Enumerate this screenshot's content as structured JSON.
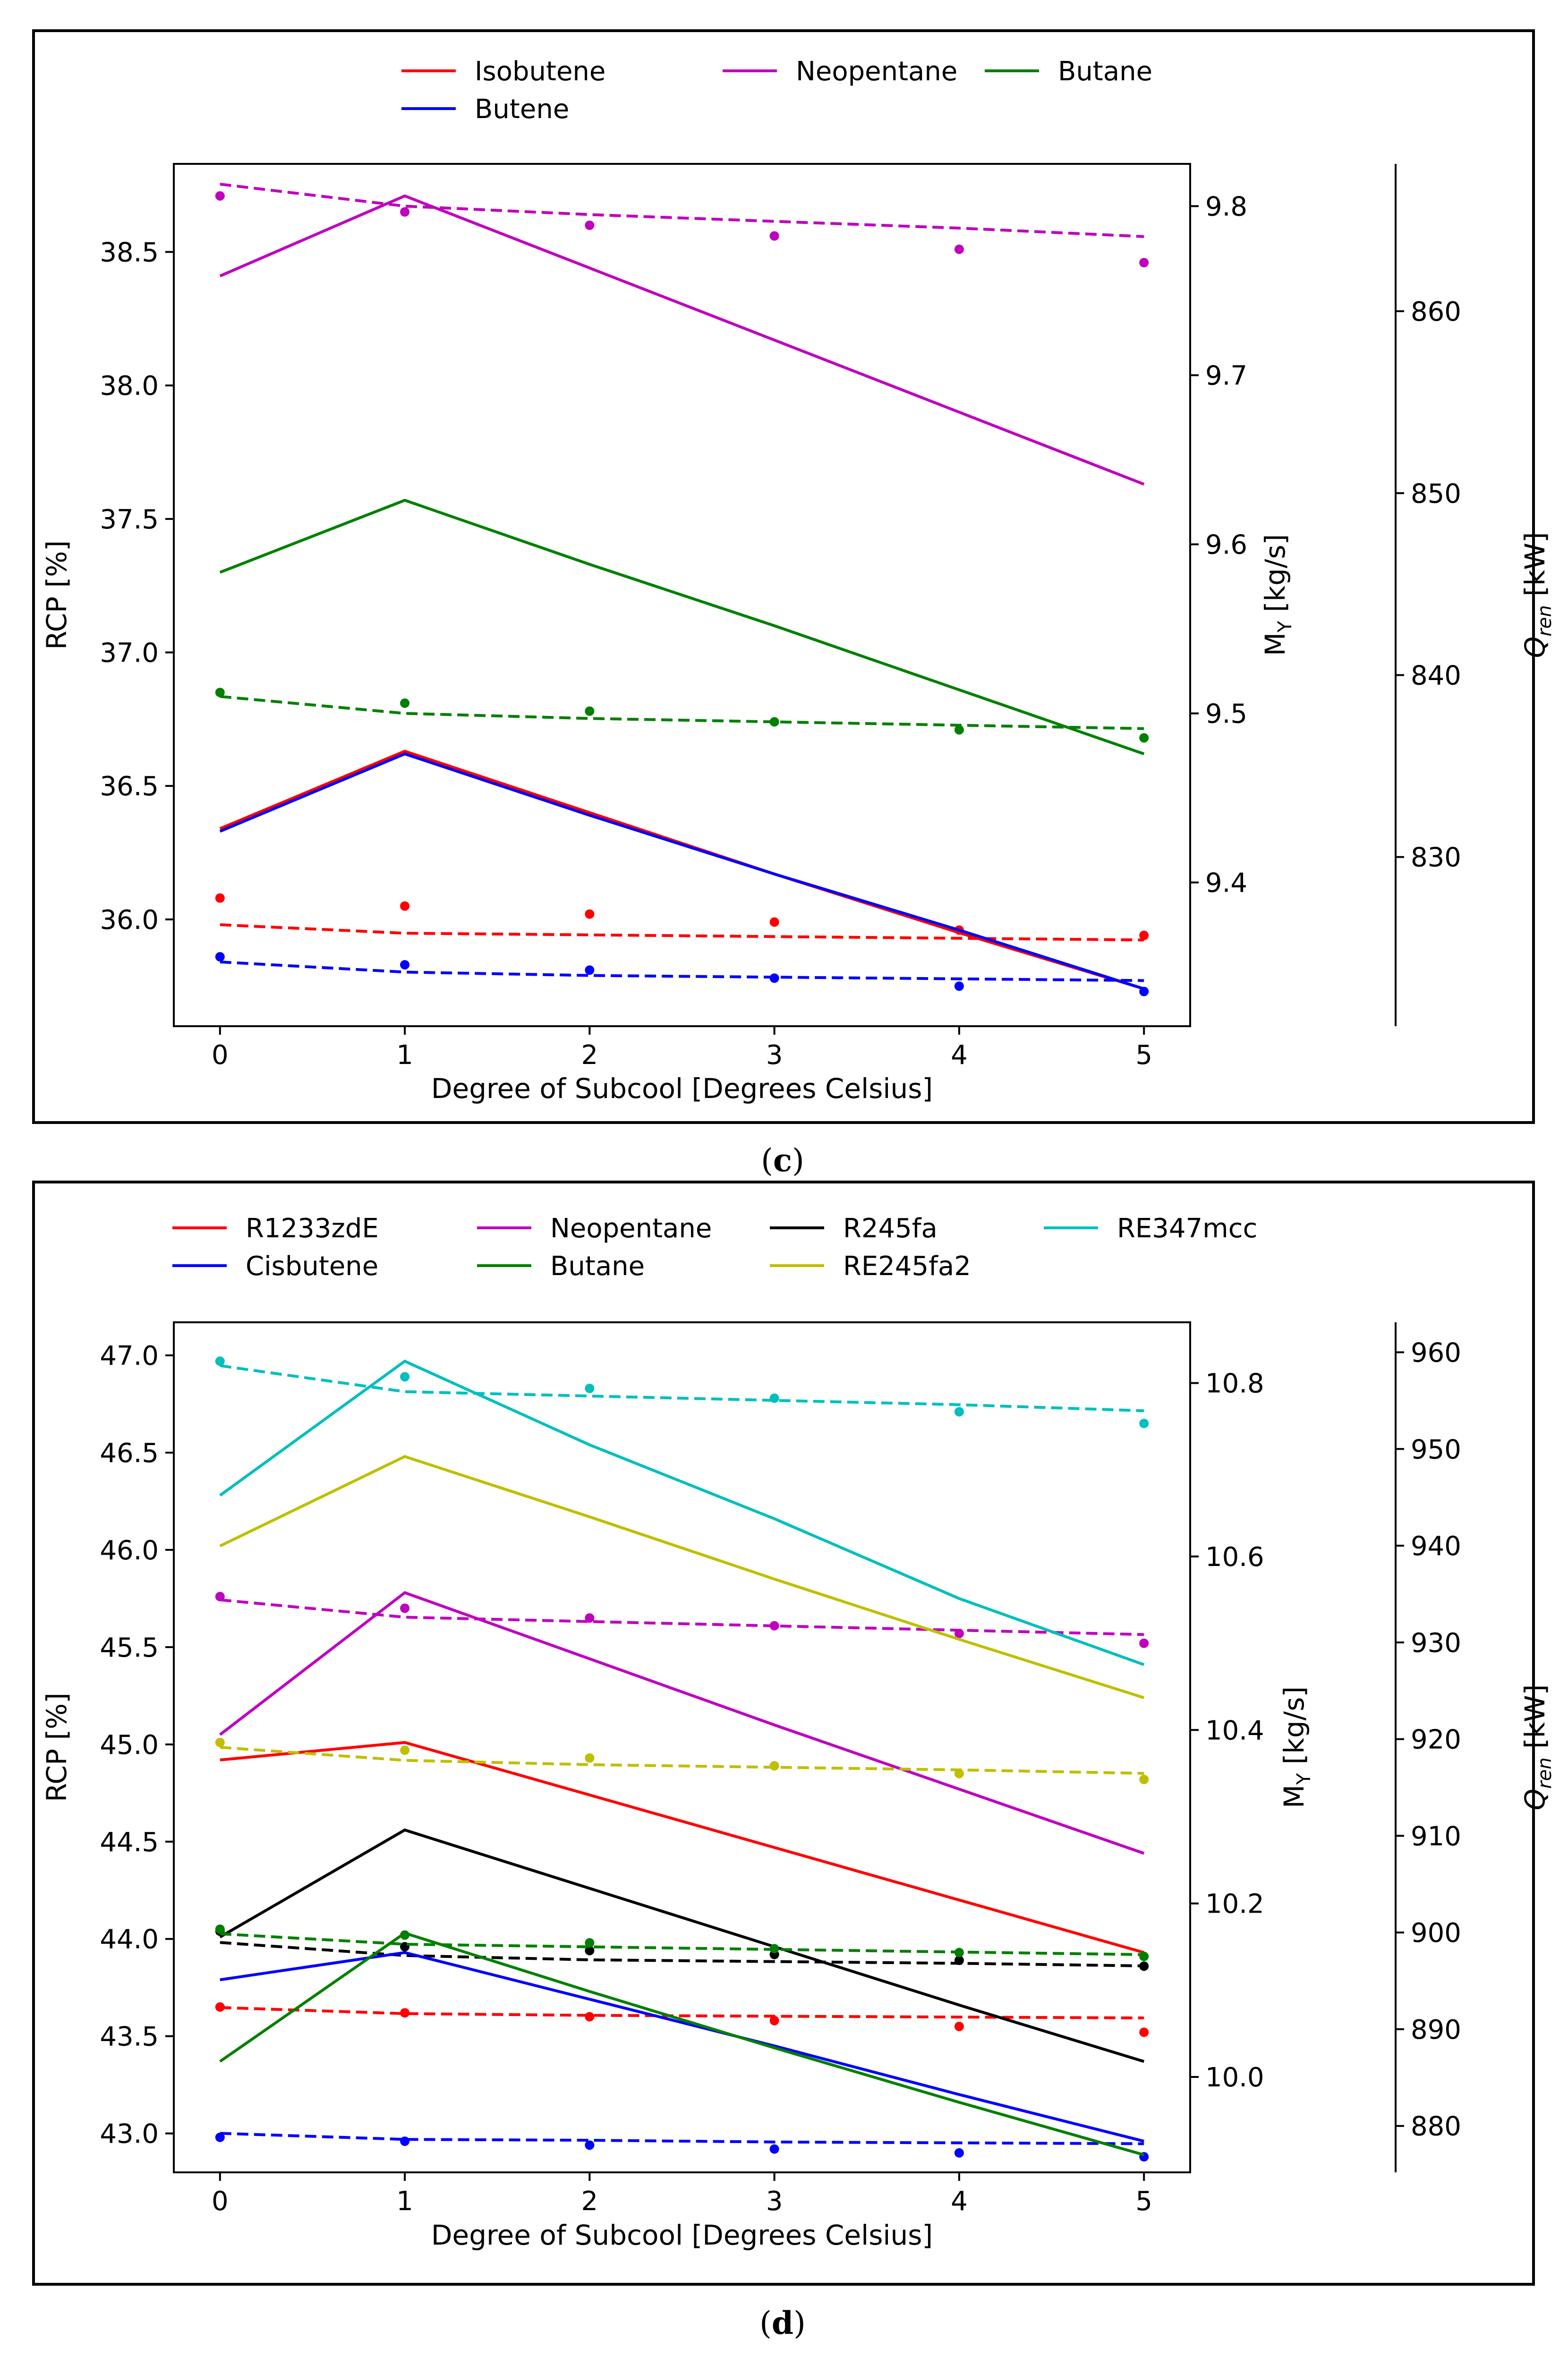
{
  "figure": {
    "caption_c": "(c)",
    "caption_d": "(d)",
    "caption_c_pre": "(",
    "caption_c_letter": "c",
    "caption_c_post": ")",
    "caption_d_pre": "(",
    "caption_d_letter": "d",
    "caption_d_post": ")"
  },
  "chart_data": [
    {
      "id": "c",
      "type": "line",
      "xlabel": "Degree of Subcool [Degrees Celsius]",
      "ylabel": "RCP [%]",
      "y2label": "M_Y [kg/s]",
      "y3label": "Q_ren [kW]",
      "y2label_main": "M",
      "y2label_sub": "Y",
      "y2label_rest": " [kg/s]",
      "y3label_main": "Q",
      "y3label_sub": "ren",
      "y3label_rest": " [kW]",
      "x": [
        0,
        1,
        2,
        3,
        4,
        5
      ],
      "xlim": [
        -0.25,
        5.25
      ],
      "xticks": [
        "0",
        "1",
        "2",
        "3",
        "4",
        "5"
      ],
      "ylim": [
        35.6,
        38.83
      ],
      "yticks": [
        "36.0",
        "36.5",
        "37.0",
        "37.5",
        "38.0",
        "38.5"
      ],
      "ytick_values": [
        36.0,
        36.5,
        37.0,
        37.5,
        38.0,
        38.5
      ],
      "y2lim": [
        9.315,
        9.825
      ],
      "y2ticks": [
        "9.4",
        "9.5",
        "9.6",
        "9.7",
        "9.8"
      ],
      "y2tick_values": [
        9.4,
        9.5,
        9.6,
        9.7,
        9.8
      ],
      "y3lim": [
        820.7,
        868.1
      ],
      "y3ticks": [
        "830",
        "840",
        "850",
        "860"
      ],
      "y3tick_values": [
        830,
        840,
        850,
        860
      ],
      "legend": [
        "Isobutene",
        "Neopentane",
        "Butane",
        "Butene"
      ],
      "legend_position": "top",
      "series": [
        {
          "name": "Isobutene",
          "color": "#ff0000",
          "solid": [
            36.34,
            36.63,
            36.4,
            36.17,
            35.95,
            35.74
          ],
          "dashed": [
            9.375,
            9.37,
            9.369,
            9.368,
            9.367,
            9.366
          ],
          "points": [
            36.08,
            36.05,
            36.02,
            35.99,
            35.96,
            35.94
          ]
        },
        {
          "name": "Neopentane",
          "color": "#bf00bf",
          "solid": [
            38.41,
            38.71,
            38.44,
            38.17,
            37.9,
            37.63
          ],
          "dashed": [
            9.813,
            9.8,
            9.795,
            9.791,
            9.787,
            9.782
          ],
          "points": [
            38.71,
            38.65,
            38.6,
            38.56,
            38.51,
            38.46
          ]
        },
        {
          "name": "Butane",
          "color": "#008000",
          "solid": [
            37.3,
            37.57,
            37.33,
            37.1,
            36.86,
            36.62
          ],
          "dashed": [
            9.51,
            9.5,
            9.497,
            9.495,
            9.493,
            9.491
          ],
          "points": [
            36.85,
            36.81,
            36.78,
            36.74,
            36.71,
            36.68
          ]
        },
        {
          "name": "Butene",
          "color": "#0000ff",
          "solid": [
            36.33,
            36.62,
            36.39,
            36.17,
            35.96,
            35.74
          ],
          "dashed": [
            9.353,
            9.347,
            9.345,
            9.344,
            9.343,
            9.342
          ],
          "points": [
            35.86,
            35.83,
            35.81,
            35.78,
            35.75,
            35.73
          ]
        }
      ]
    },
    {
      "id": "d",
      "type": "line",
      "xlabel": "Degree of Subcool [Degrees Celsius]",
      "ylabel": "RCP [%]",
      "y2label": "M_Y [kg/s]",
      "y3label": "Q_ren [kW]",
      "y2label_main": "M",
      "y2label_sub": "Y",
      "y2label_rest": " [kg/s]",
      "y3label_main": "Q",
      "y3label_sub": "ren",
      "y3label_rest": " [kW]",
      "x": [
        0,
        1,
        2,
        3,
        4,
        5
      ],
      "xlim": [
        -0.25,
        5.25
      ],
      "xticks": [
        "0",
        "1",
        "2",
        "3",
        "4",
        "5"
      ],
      "ylim": [
        42.8,
        47.17
      ],
      "yticks": [
        "43.0",
        "43.5",
        "44.0",
        "44.5",
        "45.0",
        "45.5",
        "46.0",
        "46.5",
        "47.0"
      ],
      "ytick_values": [
        43.0,
        43.5,
        44.0,
        44.5,
        45.0,
        45.5,
        46.0,
        46.5,
        47.0
      ],
      "y2lim": [
        9.89,
        10.87
      ],
      "y2ticks": [
        "10.0",
        "10.2",
        "10.4",
        "10.6",
        "10.8"
      ],
      "y2tick_values": [
        10.0,
        10.2,
        10.4,
        10.6,
        10.8
      ],
      "y3lim": [
        875.2,
        963.1
      ],
      "y3ticks": [
        "880",
        "890",
        "900",
        "910",
        "920",
        "930",
        "940",
        "950",
        "960"
      ],
      "y3tick_values": [
        880,
        890,
        900,
        910,
        920,
        930,
        940,
        950,
        960
      ],
      "legend": [
        "R1233zdE",
        "Neopentane",
        "R245fa",
        "RE347mcc",
        "Cisbutene",
        "Butane",
        "RE245fa2"
      ],
      "legend_position": "top",
      "series": [
        {
          "name": "R1233zdE",
          "color": "#ff0000",
          "solid": [
            44.92,
            45.01,
            44.74,
            44.47,
            44.2,
            43.93
          ],
          "dashed": [
            10.08,
            10.073,
            10.071,
            10.07,
            10.069,
            10.068
          ],
          "points": [
            43.65,
            43.62,
            43.6,
            43.58,
            43.55,
            43.52
          ]
        },
        {
          "name": "Neopentane",
          "color": "#bf00bf",
          "solid": [
            45.05,
            45.78,
            45.44,
            45.1,
            44.77,
            44.44
          ],
          "dashed": [
            10.55,
            10.53,
            10.525,
            10.52,
            10.515,
            10.51
          ],
          "points": [
            45.76,
            45.7,
            45.65,
            45.61,
            45.57,
            45.52
          ]
        },
        {
          "name": "R245fa",
          "color": "#000000",
          "solid": [
            44.01,
            44.56,
            44.26,
            43.96,
            43.66,
            43.37
          ],
          "dashed": [
            10.155,
            10.14,
            10.135,
            10.133,
            10.131,
            10.128
          ],
          "points": [
            44.04,
            43.96,
            43.94,
            43.92,
            43.89,
            43.86
          ]
        },
        {
          "name": "RE347mcc",
          "color": "#00bfbf",
          "solid": [
            46.28,
            46.97,
            46.54,
            46.16,
            45.75,
            45.41
          ],
          "dashed": [
            10.82,
            10.79,
            10.785,
            10.78,
            10.775,
            10.768
          ],
          "points": [
            46.97,
            46.89,
            46.83,
            46.78,
            46.71,
            46.65
          ]
        },
        {
          "name": "Cisbutene",
          "color": "#0000ff",
          "solid": [
            43.79,
            43.93,
            43.69,
            43.45,
            43.2,
            42.96
          ],
          "dashed": [
            9.935,
            9.928,
            9.927,
            9.925,
            9.924,
            9.923
          ],
          "points": [
            42.98,
            42.96,
            42.94,
            42.92,
            42.9,
            42.88
          ]
        },
        {
          "name": "Butane",
          "color": "#008000",
          "solid": [
            43.37,
            44.03,
            43.73,
            43.44,
            43.16,
            42.89
          ],
          "dashed": [
            10.165,
            10.153,
            10.15,
            10.147,
            10.144,
            10.141
          ],
          "points": [
            44.05,
            44.02,
            43.98,
            43.95,
            43.93,
            43.91
          ]
        },
        {
          "name": "RE245fa2",
          "color": "#bfbf00",
          "solid": [
            46.02,
            46.48,
            46.17,
            45.85,
            45.54,
            45.24
          ],
          "dashed": [
            10.38,
            10.365,
            10.36,
            10.357,
            10.354,
            10.35
          ],
          "points": [
            45.01,
            44.97,
            44.93,
            44.89,
            44.85,
            44.82
          ]
        }
      ]
    }
  ]
}
